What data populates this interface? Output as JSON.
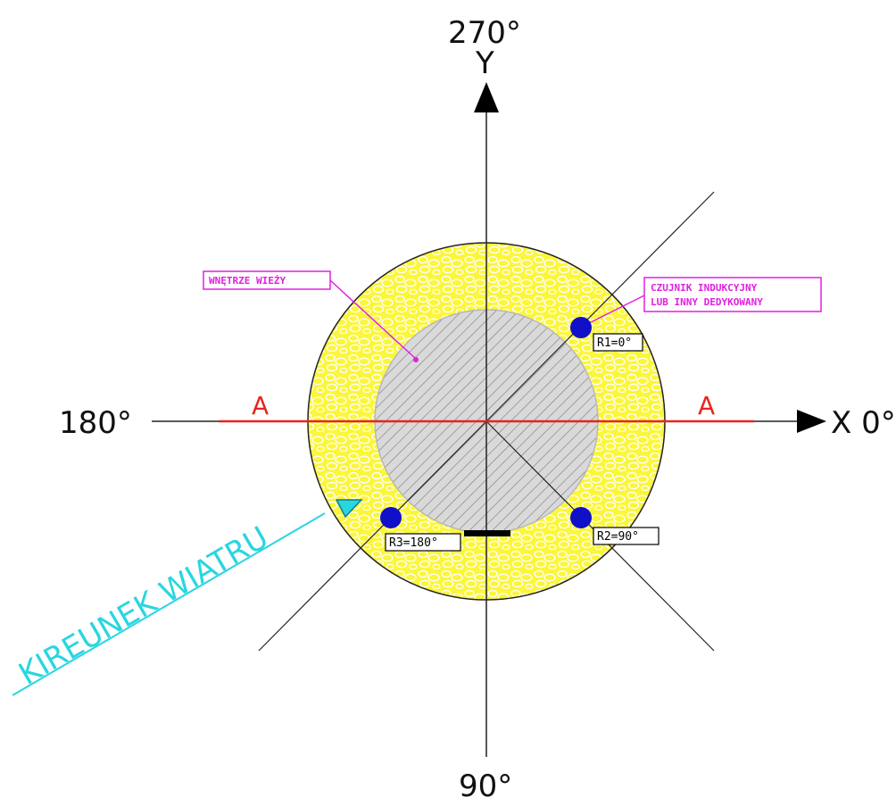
{
  "axes": {
    "top_angle": "270°",
    "y_label": "Y",
    "left_angle": "180°",
    "x_label": "X 0°",
    "bottom_angle": "90°"
  },
  "section": {
    "left_label": "A",
    "right_label": "A",
    "color": "#e8241c"
  },
  "callouts": {
    "interior": "WNĘTRZE WIEŻY",
    "sensor_line1": "CZUJNIK INDUKCYJNY",
    "sensor_line2": "LUB INNY DEDYKOWANY",
    "color": "#e020e0"
  },
  "sensors": [
    {
      "label": "R1=0°",
      "color": "#1010c8"
    },
    {
      "label": "R2=90°",
      "color": "#1010c8"
    },
    {
      "label": "R3=180°",
      "color": "#1010c8"
    }
  ],
  "wind": {
    "label": "KIREUNEK WIATRU",
    "color": "#29d6e0"
  },
  "colors": {
    "ring_fill": "#fbf63c",
    "interior_fill": "#d9d9d9",
    "outline": "#222222"
  }
}
